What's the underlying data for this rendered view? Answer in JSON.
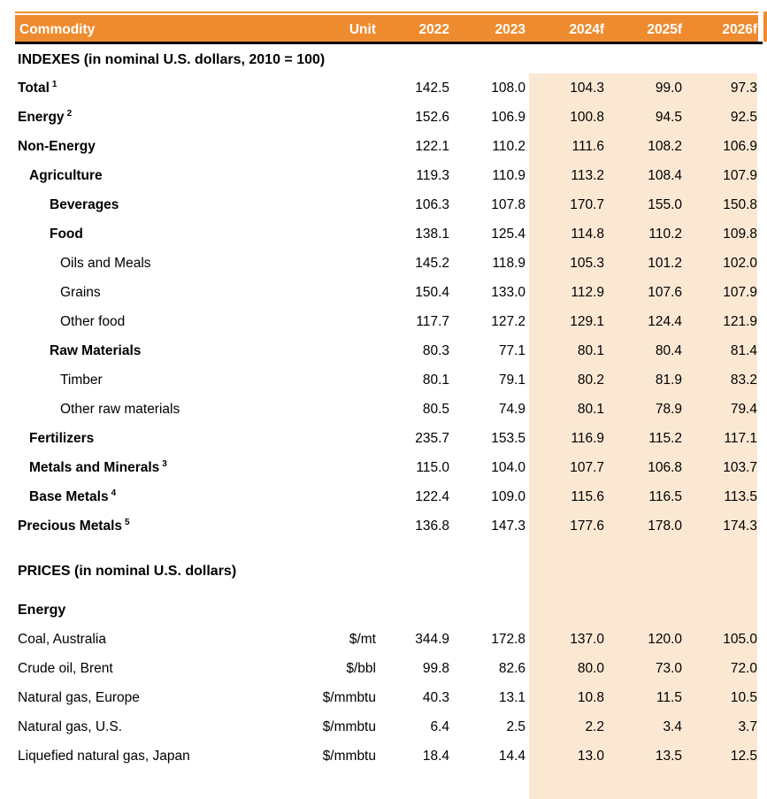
{
  "colors": {
    "header_bg": "#EF8B2F",
    "header_text": "#FFFFFF",
    "forecast_bg": "#FBE8D3",
    "rule_black": "#000000"
  },
  "chart_data": {
    "type": "table",
    "columns": [
      "Commodity",
      "Unit",
      "2022",
      "2023",
      "2024f",
      "2025f",
      "2026f"
    ],
    "forecast_columns": [
      "2024f",
      "2025f",
      "2026f"
    ],
    "indexes_heading": "INDEXES (in nominal U.S. dollars, 2010 = 100)",
    "rows": [
      {
        "row_type": "data",
        "label": "Total",
        "footnote": "1",
        "bold": true,
        "indent": 0,
        "unit": "",
        "values": [
          "142.5",
          "108.0",
          "104.3",
          "99.0",
          "97.3"
        ]
      },
      {
        "row_type": "data",
        "label": "Energy",
        "footnote": "2",
        "bold": true,
        "indent": 0,
        "unit": "",
        "values": [
          "152.6",
          "106.9",
          "100.8",
          "94.5",
          "92.5"
        ]
      },
      {
        "row_type": "data",
        "label": "Non-Energy",
        "bold": true,
        "indent": 0,
        "unit": "",
        "values": [
          "122.1",
          "110.2",
          "111.6",
          "108.2",
          "106.9"
        ]
      },
      {
        "row_type": "data",
        "label": "Agriculture",
        "bold": true,
        "indent": 1,
        "unit": "",
        "values": [
          "119.3",
          "110.9",
          "113.2",
          "108.4",
          "107.9"
        ]
      },
      {
        "row_type": "data",
        "label": "Beverages",
        "bold": true,
        "indent": 2,
        "unit": "",
        "values": [
          "106.3",
          "107.8",
          "170.7",
          "155.0",
          "150.8"
        ]
      },
      {
        "row_type": "data",
        "label": "Food",
        "bold": true,
        "indent": 2,
        "unit": "",
        "values": [
          "138.1",
          "125.4",
          "114.8",
          "110.2",
          "109.8"
        ]
      },
      {
        "row_type": "data",
        "label": "Oils and Meals",
        "bold": false,
        "indent": 3,
        "unit": "",
        "values": [
          "145.2",
          "118.9",
          "105.3",
          "101.2",
          "102.0"
        ]
      },
      {
        "row_type": "data",
        "label": "Grains",
        "bold": false,
        "indent": 3,
        "unit": "",
        "values": [
          "150.4",
          "133.0",
          "112.9",
          "107.6",
          "107.9"
        ]
      },
      {
        "row_type": "data",
        "label": "Other food",
        "bold": false,
        "indent": 3,
        "unit": "",
        "values": [
          "117.7",
          "127.2",
          "129.1",
          "124.4",
          "121.9"
        ]
      },
      {
        "row_type": "data",
        "label": "Raw Materials",
        "bold": true,
        "indent": 2,
        "unit": "",
        "values": [
          "80.3",
          "77.1",
          "80.1",
          "80.4",
          "81.4"
        ]
      },
      {
        "row_type": "data",
        "label": "Timber",
        "bold": false,
        "indent": 3,
        "unit": "",
        "values": [
          "80.1",
          "79.1",
          "80.2",
          "81.9",
          "83.2"
        ]
      },
      {
        "row_type": "data",
        "label": "Other raw materials",
        "bold": false,
        "indent": 3,
        "unit": "",
        "values": [
          "80.5",
          "74.9",
          "80.1",
          "78.9",
          "79.4"
        ]
      },
      {
        "row_type": "data",
        "label": "Fertilizers",
        "bold": true,
        "indent": 1,
        "unit": "",
        "values": [
          "235.7",
          "153.5",
          "116.9",
          "115.2",
          "117.1"
        ]
      },
      {
        "row_type": "data",
        "label": "Metals and Minerals",
        "footnote": "3",
        "bold": true,
        "indent": 1,
        "unit": "",
        "values": [
          "115.0",
          "104.0",
          "107.7",
          "106.8",
          "103.7"
        ]
      },
      {
        "row_type": "data",
        "label": "Base Metals",
        "footnote": "4",
        "bold": true,
        "indent": 1,
        "unit": "",
        "values": [
          "122.4",
          "109.0",
          "115.6",
          "116.5",
          "113.5"
        ]
      },
      {
        "row_type": "data",
        "label": "Precious Metals",
        "footnote": "5",
        "bold": true,
        "indent": 0,
        "unit": "",
        "values": [
          "136.8",
          "147.3",
          "177.6",
          "178.0",
          "174.3"
        ]
      },
      {
        "row_type": "spacer",
        "height": 18
      },
      {
        "row_type": "section",
        "label": "PRICES (in nominal U.S. dollars)"
      },
      {
        "row_type": "spacer",
        "height": 11
      },
      {
        "row_type": "section",
        "label": "Energy"
      },
      {
        "row_type": "data",
        "label": "Coal, Australia",
        "bold": false,
        "indent": 0,
        "unit": "$/mt",
        "values": [
          "344.9",
          "172.8",
          "137.0",
          "120.0",
          "105.0"
        ]
      },
      {
        "row_type": "data",
        "label": "Crude oil, Brent",
        "bold": false,
        "indent": 0,
        "unit": "$/bbl",
        "values": [
          "99.8",
          "82.6",
          "80.0",
          "73.0",
          "72.0"
        ]
      },
      {
        "row_type": "data",
        "label": "Natural gas, Europe",
        "bold": false,
        "indent": 0,
        "unit": "$/mmbtu",
        "values": [
          "40.3",
          "13.1",
          "10.8",
          "11.5",
          "10.5"
        ]
      },
      {
        "row_type": "data",
        "label": "Natural gas, U.S.",
        "bold": false,
        "indent": 0,
        "unit": "$/mmbtu",
        "values": [
          "6.4",
          "2.5",
          "2.2",
          "3.4",
          "3.7"
        ]
      },
      {
        "row_type": "data",
        "label": "Liquefied natural gas, Japan",
        "bold": false,
        "indent": 0,
        "unit": "$/mmbtu",
        "values": [
          "18.4",
          "14.4",
          "13.0",
          "13.5",
          "12.5"
        ]
      }
    ]
  }
}
